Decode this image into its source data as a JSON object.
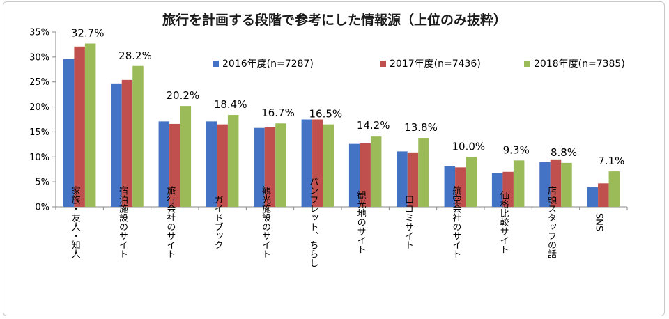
{
  "chart_data": {
    "type": "bar",
    "title": "旅行を計画する段階で参考にした情報源（上位のみ抜粋）",
    "ylim": [
      0,
      35
    ],
    "yticks": [
      "0%",
      "5%",
      "10%",
      "15%",
      "20%",
      "25%",
      "30%",
      "35%"
    ],
    "grid": false,
    "legend_position": "top-right",
    "categories": [
      "家族・友人・知人",
      "宿泊施設のサイト",
      "旅行会社のサイト",
      "ガイドブック",
      "観光施設のサイト",
      "パンフレット、ちらし",
      "観光地のサイト",
      "口コミサイト",
      "航空会社のサイト",
      "価格比較サイト",
      "店頭スタッフの話",
      "SNS"
    ],
    "series": [
      {
        "name": "2016年度(n=7287)",
        "color": "#4472c4",
        "values": [
          29.6,
          24.7,
          17.1,
          17.1,
          15.8,
          17.5,
          12.6,
          11.1,
          8.1,
          6.8,
          9.0,
          3.9
        ]
      },
      {
        "name": "2017年度(n=7436)",
        "color": "#c0504d",
        "values": [
          32.1,
          25.4,
          16.6,
          16.5,
          15.9,
          17.5,
          12.7,
          10.9,
          7.9,
          7.0,
          9.5,
          4.7
        ]
      },
      {
        "name": "2018年度(n=7385)",
        "color": "#9bbb59",
        "values": [
          32.7,
          28.2,
          20.2,
          18.4,
          16.7,
          16.5,
          14.2,
          13.8,
          10.0,
          9.3,
          8.8,
          7.1
        ]
      }
    ],
    "data_labels": [
      "32.7%",
      "28.2%",
      "20.2%",
      "18.4%",
      "16.7%",
      "16.5%",
      "14.2%",
      "13.8%",
      "10.0%",
      "9.3%",
      "8.8%",
      "7.1%"
    ]
  }
}
